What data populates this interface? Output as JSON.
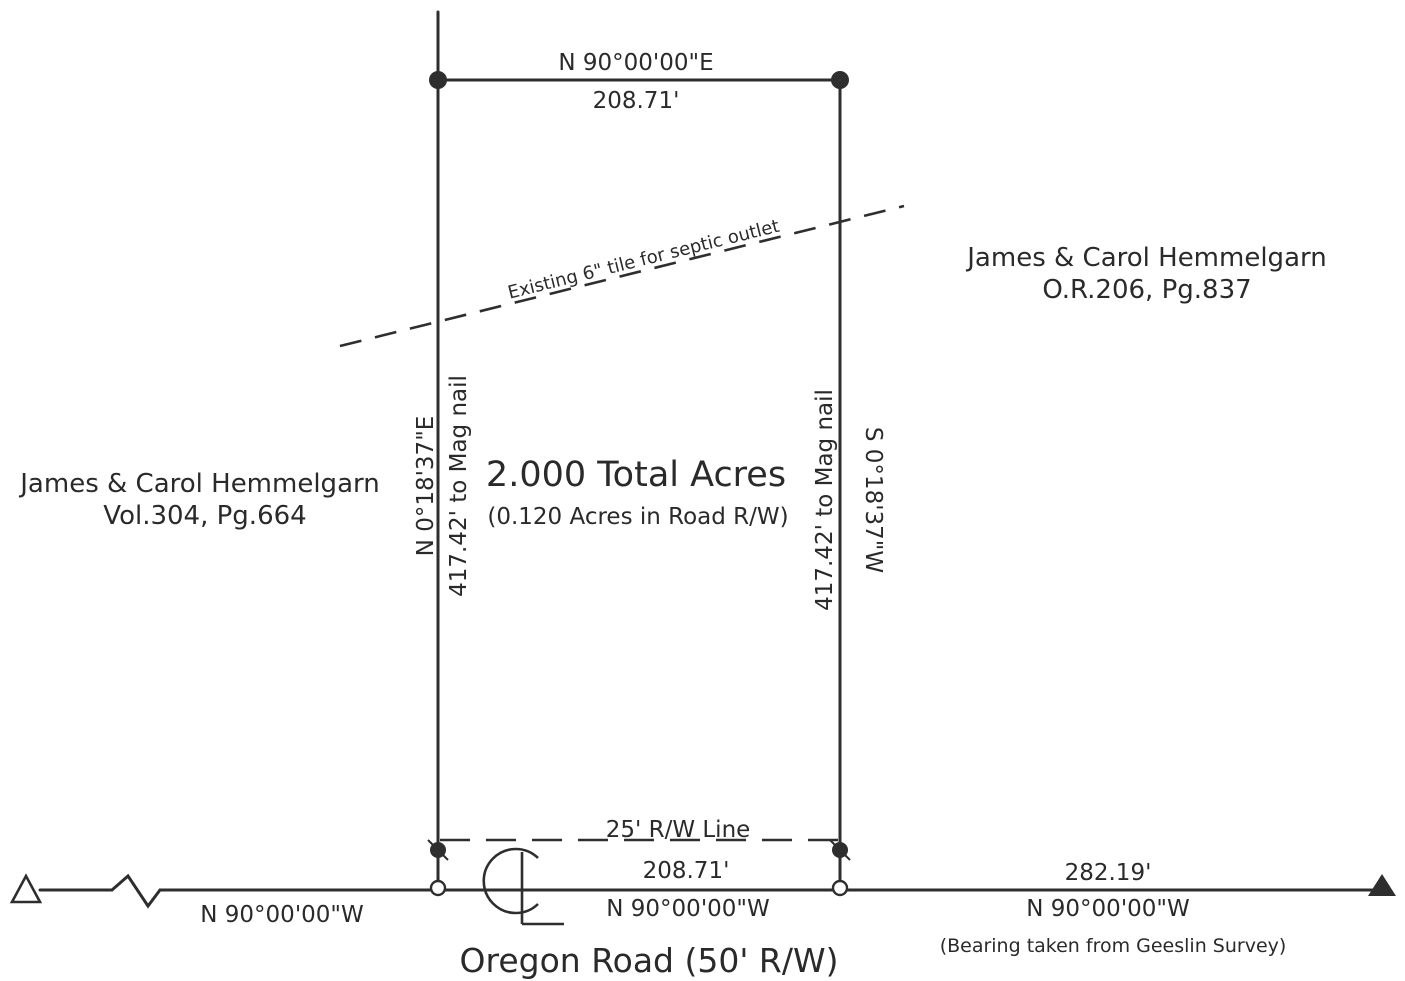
{
  "parcel": {
    "area_title": "2.000 Total Acres",
    "area_subtitle": "(0.120 Acres in Road R/W)"
  },
  "bounds": {
    "north_bearing": "N 90°00'00\"E",
    "north_distance": "208.71'",
    "west_bearing": "N 0°18'37\"E",
    "west_distance": "417.42' to Mag nail",
    "east_distance": "417.42' to Mag nail",
    "east_bearing": "S 0°18'37\"W",
    "south_rw_label": "25' R/W Line",
    "south_distance": "208.71'",
    "south_bearing": "N 90°00'00\"W"
  },
  "road": {
    "name": "Oregon Road (50' R/W)",
    "left_bearing": "N 90°00'00\"W",
    "right_distance": "282.19'",
    "right_bearing": "N 90°00'00\"W",
    "bearing_note": "(Bearing taken from Geeslin Survey)"
  },
  "adjoiners": {
    "west_owner": "James & Carol Hemmelgarn",
    "west_deed": "Vol.304, Pg.664",
    "east_owner": "James & Carol Hemmelgarn",
    "east_deed": "O.R.206, Pg.837"
  },
  "tile": {
    "label": "Existing 6\" tile for septic outlet"
  },
  "colors": {
    "ink": "#2e2e2e",
    "paper": "#ffffff"
  }
}
